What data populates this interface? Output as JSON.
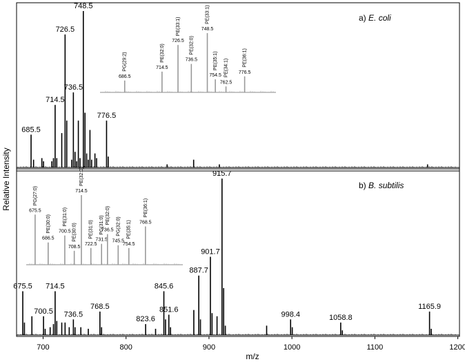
{
  "chart_data": {
    "type": "line",
    "ylabel": "Relative Intensity",
    "xlabel": "m/z",
    "xlim": [
      668,
      1202
    ],
    "x_ticks": [
      700,
      800,
      900,
      1000,
      1100,
      1200
    ],
    "grid": false,
    "panels": [
      {
        "id": "a",
        "prefix": "a)",
        "organism": "E. coli",
        "peaks": [
          {
            "mz": 685.5,
            "rel": 0.21,
            "label": "685.5"
          },
          {
            "mz": 688.5,
            "rel": 0.05
          },
          {
            "mz": 698.5,
            "rel": 0.06
          },
          {
            "mz": 700.5,
            "rel": 0.04
          },
          {
            "mz": 710.5,
            "rel": 0.04
          },
          {
            "mz": 712.5,
            "rel": 0.06
          },
          {
            "mz": 714.5,
            "rel": 0.4,
            "label": "714.5"
          },
          {
            "mz": 716.5,
            "rel": 0.06
          },
          {
            "mz": 722.5,
            "rel": 0.22
          },
          {
            "mz": 726.5,
            "rel": 0.85,
            "label": "726.5"
          },
          {
            "mz": 728.5,
            "rel": 0.3
          },
          {
            "mz": 734.5,
            "rel": 0.05
          },
          {
            "mz": 736.5,
            "rel": 0.48,
            "label": "736.5"
          },
          {
            "mz": 738.5,
            "rel": 0.1
          },
          {
            "mz": 740.5,
            "rel": 0.04
          },
          {
            "mz": 742.5,
            "rel": 0.3
          },
          {
            "mz": 744.5,
            "rel": 0.06
          },
          {
            "mz": 748.5,
            "rel": 1.0,
            "label": "748.5"
          },
          {
            "mz": 750.5,
            "rel": 0.35
          },
          {
            "mz": 752.5,
            "rel": 0.09
          },
          {
            "mz": 754.5,
            "rel": 0.05
          },
          {
            "mz": 756.5,
            "rel": 0.24
          },
          {
            "mz": 758.5,
            "rel": 0.05
          },
          {
            "mz": 762.5,
            "rel": 0.09
          },
          {
            "mz": 764.5,
            "rel": 0.06
          },
          {
            "mz": 776.5,
            "rel": 0.3,
            "label": "776.5"
          },
          {
            "mz": 778.5,
            "rel": 0.07
          },
          {
            "mz": 849.5,
            "rel": 0.02
          },
          {
            "mz": 881.5,
            "rel": 0.05
          },
          {
            "mz": 912.5,
            "rel": 0.02
          },
          {
            "mz": 1163.5,
            "rel": 0.02
          }
        ],
        "inset": {
          "peaks": [
            {
              "mz": 686.5,
              "rel": 0.2,
              "label": "686.5",
              "lipid": "PG(29:2)"
            },
            {
              "mz": 714.5,
              "rel": 0.35,
              "label": "714.5",
              "lipid": "PE(32:0)"
            },
            {
              "mz": 726.5,
              "rel": 0.8,
              "label": "726.5",
              "lipid": "PE(33:1)"
            },
            {
              "mz": 736.5,
              "rel": 0.48,
              "label": "736.5",
              "lipid": "PE(32:0)"
            },
            {
              "mz": 748.5,
              "rel": 1.0,
              "label": "748.5",
              "lipid": "PE(33:1)"
            },
            {
              "mz": 754.5,
              "rel": 0.22,
              "label": "754.5",
              "lipid": "PE(35:1)"
            },
            {
              "mz": 762.5,
              "rel": 0.1,
              "label": "762.5",
              "lipid": "PE(34:1)"
            },
            {
              "mz": 776.5,
              "rel": 0.27,
              "label": "776.5",
              "lipid": "PE(36:1)"
            }
          ]
        }
      },
      {
        "id": "b",
        "prefix": "b)",
        "organism": "B. subtilis",
        "peaks": [
          {
            "mz": 675.5,
            "rel": 0.28,
            "label": "675.5"
          },
          {
            "mz": 677.5,
            "rel": 0.08
          },
          {
            "mz": 686.5,
            "rel": 0.12
          },
          {
            "mz": 700.5,
            "rel": 0.12,
            "label": "700.5"
          },
          {
            "mz": 702.5,
            "rel": 0.04
          },
          {
            "mz": 708.5,
            "rel": 0.05
          },
          {
            "mz": 712.5,
            "rel": 0.07
          },
          {
            "mz": 714.5,
            "rel": 0.28,
            "label": "714.5"
          },
          {
            "mz": 716.5,
            "rel": 0.09
          },
          {
            "mz": 722.5,
            "rel": 0.08
          },
          {
            "mz": 726.5,
            "rel": 0.08
          },
          {
            "mz": 731.5,
            "rel": 0.05
          },
          {
            "mz": 736.5,
            "rel": 0.1,
            "label": "736.5"
          },
          {
            "mz": 738.5,
            "rel": 0.05
          },
          {
            "mz": 745.5,
            "rel": 0.05
          },
          {
            "mz": 754.5,
            "rel": 0.04
          },
          {
            "mz": 768.5,
            "rel": 0.15,
            "label": "768.5"
          },
          {
            "mz": 770.5,
            "rel": 0.05
          },
          {
            "mz": 823.6,
            "rel": 0.07,
            "label": "823.6"
          },
          {
            "mz": 835.6,
            "rel": 0.04
          },
          {
            "mz": 845.6,
            "rel": 0.28,
            "label": "845.6"
          },
          {
            "mz": 847.6,
            "rel": 0.1
          },
          {
            "mz": 851.6,
            "rel": 0.13,
            "label": "851.6"
          },
          {
            "mz": 853.6,
            "rel": 0.05
          },
          {
            "mz": 881.7,
            "rel": 0.16
          },
          {
            "mz": 887.7,
            "rel": 0.38,
            "label": "887.7"
          },
          {
            "mz": 889.7,
            "rel": 0.1
          },
          {
            "mz": 901.7,
            "rel": 0.5,
            "label": "901.7"
          },
          {
            "mz": 903.7,
            "rel": 0.14
          },
          {
            "mz": 909.7,
            "rel": 0.12
          },
          {
            "mz": 915.7,
            "rel": 1.0,
            "label": "915.7"
          },
          {
            "mz": 917.7,
            "rel": 0.3
          },
          {
            "mz": 919.7,
            "rel": 0.06
          },
          {
            "mz": 969.5,
            "rel": 0.06
          },
          {
            "mz": 998.4,
            "rel": 0.1,
            "label": "998.4"
          },
          {
            "mz": 1000.4,
            "rel": 0.05
          },
          {
            "mz": 1058.8,
            "rel": 0.08,
            "label": "1058.8"
          },
          {
            "mz": 1060.8,
            "rel": 0.03
          },
          {
            "mz": 1165.9,
            "rel": 0.15,
            "label": "1165.9"
          },
          {
            "mz": 1167.9,
            "rel": 0.04
          }
        ],
        "inset": {
          "peaks": [
            {
              "mz": 675.5,
              "rel": 0.72,
              "label": "675.5",
              "lipid": "PG(27:0)"
            },
            {
              "mz": 686.5,
              "rel": 0.32,
              "label": "686.5",
              "lipid": "PE(30:0)"
            },
            {
              "mz": 700.5,
              "rel": 0.42,
              "label": "700.5",
              "lipid": "PE(31:0)"
            },
            {
              "mz": 708.5,
              "rel": 0.2,
              "label": "708.5",
              "lipid": "PE(30:0)"
            },
            {
              "mz": 714.5,
              "rel": 1.0,
              "label": "714.5",
              "lipid": "PE(32:0)"
            },
            {
              "mz": 722.5,
              "rel": 0.24,
              "label": "722.5",
              "lipid": "PE(31:0)"
            },
            {
              "mz": 731.5,
              "rel": 0.3,
              "label": "731.5",
              "lipid": "PG(31:0)"
            },
            {
              "mz": 736.5,
              "rel": 0.44,
              "label": "736.5",
              "lipid": "PE(32:0)"
            },
            {
              "mz": 745.5,
              "rel": 0.28,
              "label": "745.5",
              "lipid": "PG(32:0)"
            },
            {
              "mz": 754.5,
              "rel": 0.24,
              "label": "754.5",
              "lipid": "PE(35:1)"
            },
            {
              "mz": 768.5,
              "rel": 0.55,
              "label": "768.5",
              "lipid": "PE(36:1)"
            }
          ]
        }
      }
    ]
  }
}
